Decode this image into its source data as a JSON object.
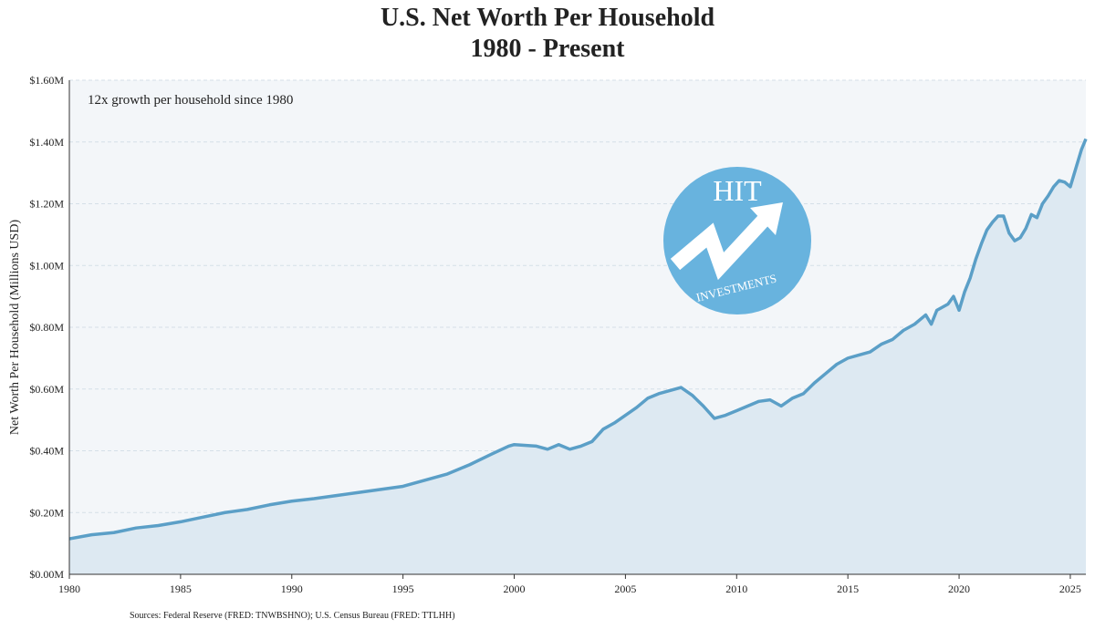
{
  "chart_data": {
    "type": "area",
    "title": "U.S. Net Worth Per Household",
    "subtitle": "1980 - Present",
    "ylabel": "Net Worth Per Household (Millions USD)",
    "annotation": "12x growth per household since 1980",
    "source": "Sources: Federal Reserve (FRED: TNWBSHNO); U.S. Census Bureau (FRED: TTLHH)",
    "logo": {
      "title": "HIT",
      "subtitle": "INVESTMENTS"
    },
    "color": "#5b9fc7",
    "fill": "#dde9f2",
    "grid": true,
    "x": [
      1980,
      1981,
      1982,
      1983,
      1984,
      1985,
      1986,
      1987,
      1988,
      1989,
      1990,
      1991,
      1992,
      1993,
      1994,
      1995,
      1996,
      1997,
      1998,
      1999,
      1999.75,
      2000,
      2001,
      2001.5,
      2002,
      2002.5,
      2003,
      2003.5,
      2004,
      2004.5,
      2005,
      2005.5,
      2006,
      2006.5,
      2007,
      2007.5,
      2008,
      2008.5,
      2009,
      2009.5,
      2010,
      2010.5,
      2011,
      2011.5,
      2012,
      2012.5,
      2013,
      2013.5,
      2014,
      2014.5,
      2015,
      2015.5,
      2016,
      2016.5,
      2017,
      2017.5,
      2018,
      2018.5,
      2018.75,
      2019,
      2019.5,
      2019.75,
      2020,
      2020.25,
      2020.5,
      2020.75,
      2021,
      2021.25,
      2021.5,
      2021.75,
      2022,
      2022.25,
      2022.5,
      2022.75,
      2023,
      2023.25,
      2023.5,
      2023.75,
      2024,
      2024.25,
      2024.5,
      2024.75,
      2025,
      2025.25,
      2025.5,
      2025.7
    ],
    "values": [
      0.115,
      0.128,
      0.135,
      0.15,
      0.158,
      0.17,
      0.185,
      0.2,
      0.21,
      0.225,
      0.237,
      0.245,
      0.255,
      0.265,
      0.275,
      0.285,
      0.305,
      0.325,
      0.355,
      0.39,
      0.415,
      0.42,
      0.415,
      0.405,
      0.42,
      0.405,
      0.415,
      0.43,
      0.47,
      0.49,
      0.515,
      0.54,
      0.57,
      0.585,
      0.595,
      0.605,
      0.58,
      0.545,
      0.505,
      0.515,
      0.53,
      0.545,
      0.56,
      0.565,
      0.545,
      0.57,
      0.585,
      0.62,
      0.65,
      0.68,
      0.7,
      0.71,
      0.72,
      0.745,
      0.76,
      0.79,
      0.81,
      0.84,
      0.81,
      0.855,
      0.875,
      0.9,
      0.855,
      0.915,
      0.96,
      1.02,
      1.07,
      1.115,
      1.14,
      1.16,
      1.16,
      1.105,
      1.08,
      1.09,
      1.12,
      1.165,
      1.155,
      1.2,
      1.225,
      1.255,
      1.275,
      1.27,
      1.255,
      1.315,
      1.375,
      1.41
    ],
    "xlim": [
      1980,
      2025.7
    ],
    "xticks": [
      1980,
      1985,
      1990,
      1995,
      2000,
      2005,
      2010,
      2015,
      2020,
      2025
    ],
    "ylim": [
      0,
      1.6
    ],
    "yticks": [
      {
        "value": 0,
        "label": "$0.00M"
      },
      {
        "value": 0.2,
        "label": "$0.20M"
      },
      {
        "value": 0.4,
        "label": "$0.40M"
      },
      {
        "value": 0.6,
        "label": "$0.60M"
      },
      {
        "value": 0.8,
        "label": "$0.80M"
      },
      {
        "value": 1.0,
        "label": "$1.00M"
      },
      {
        "value": 1.2,
        "label": "$1.20M"
      },
      {
        "value": 1.4,
        "label": "$1.40M"
      },
      {
        "value": 1.6,
        "label": "$1.60M"
      }
    ]
  }
}
